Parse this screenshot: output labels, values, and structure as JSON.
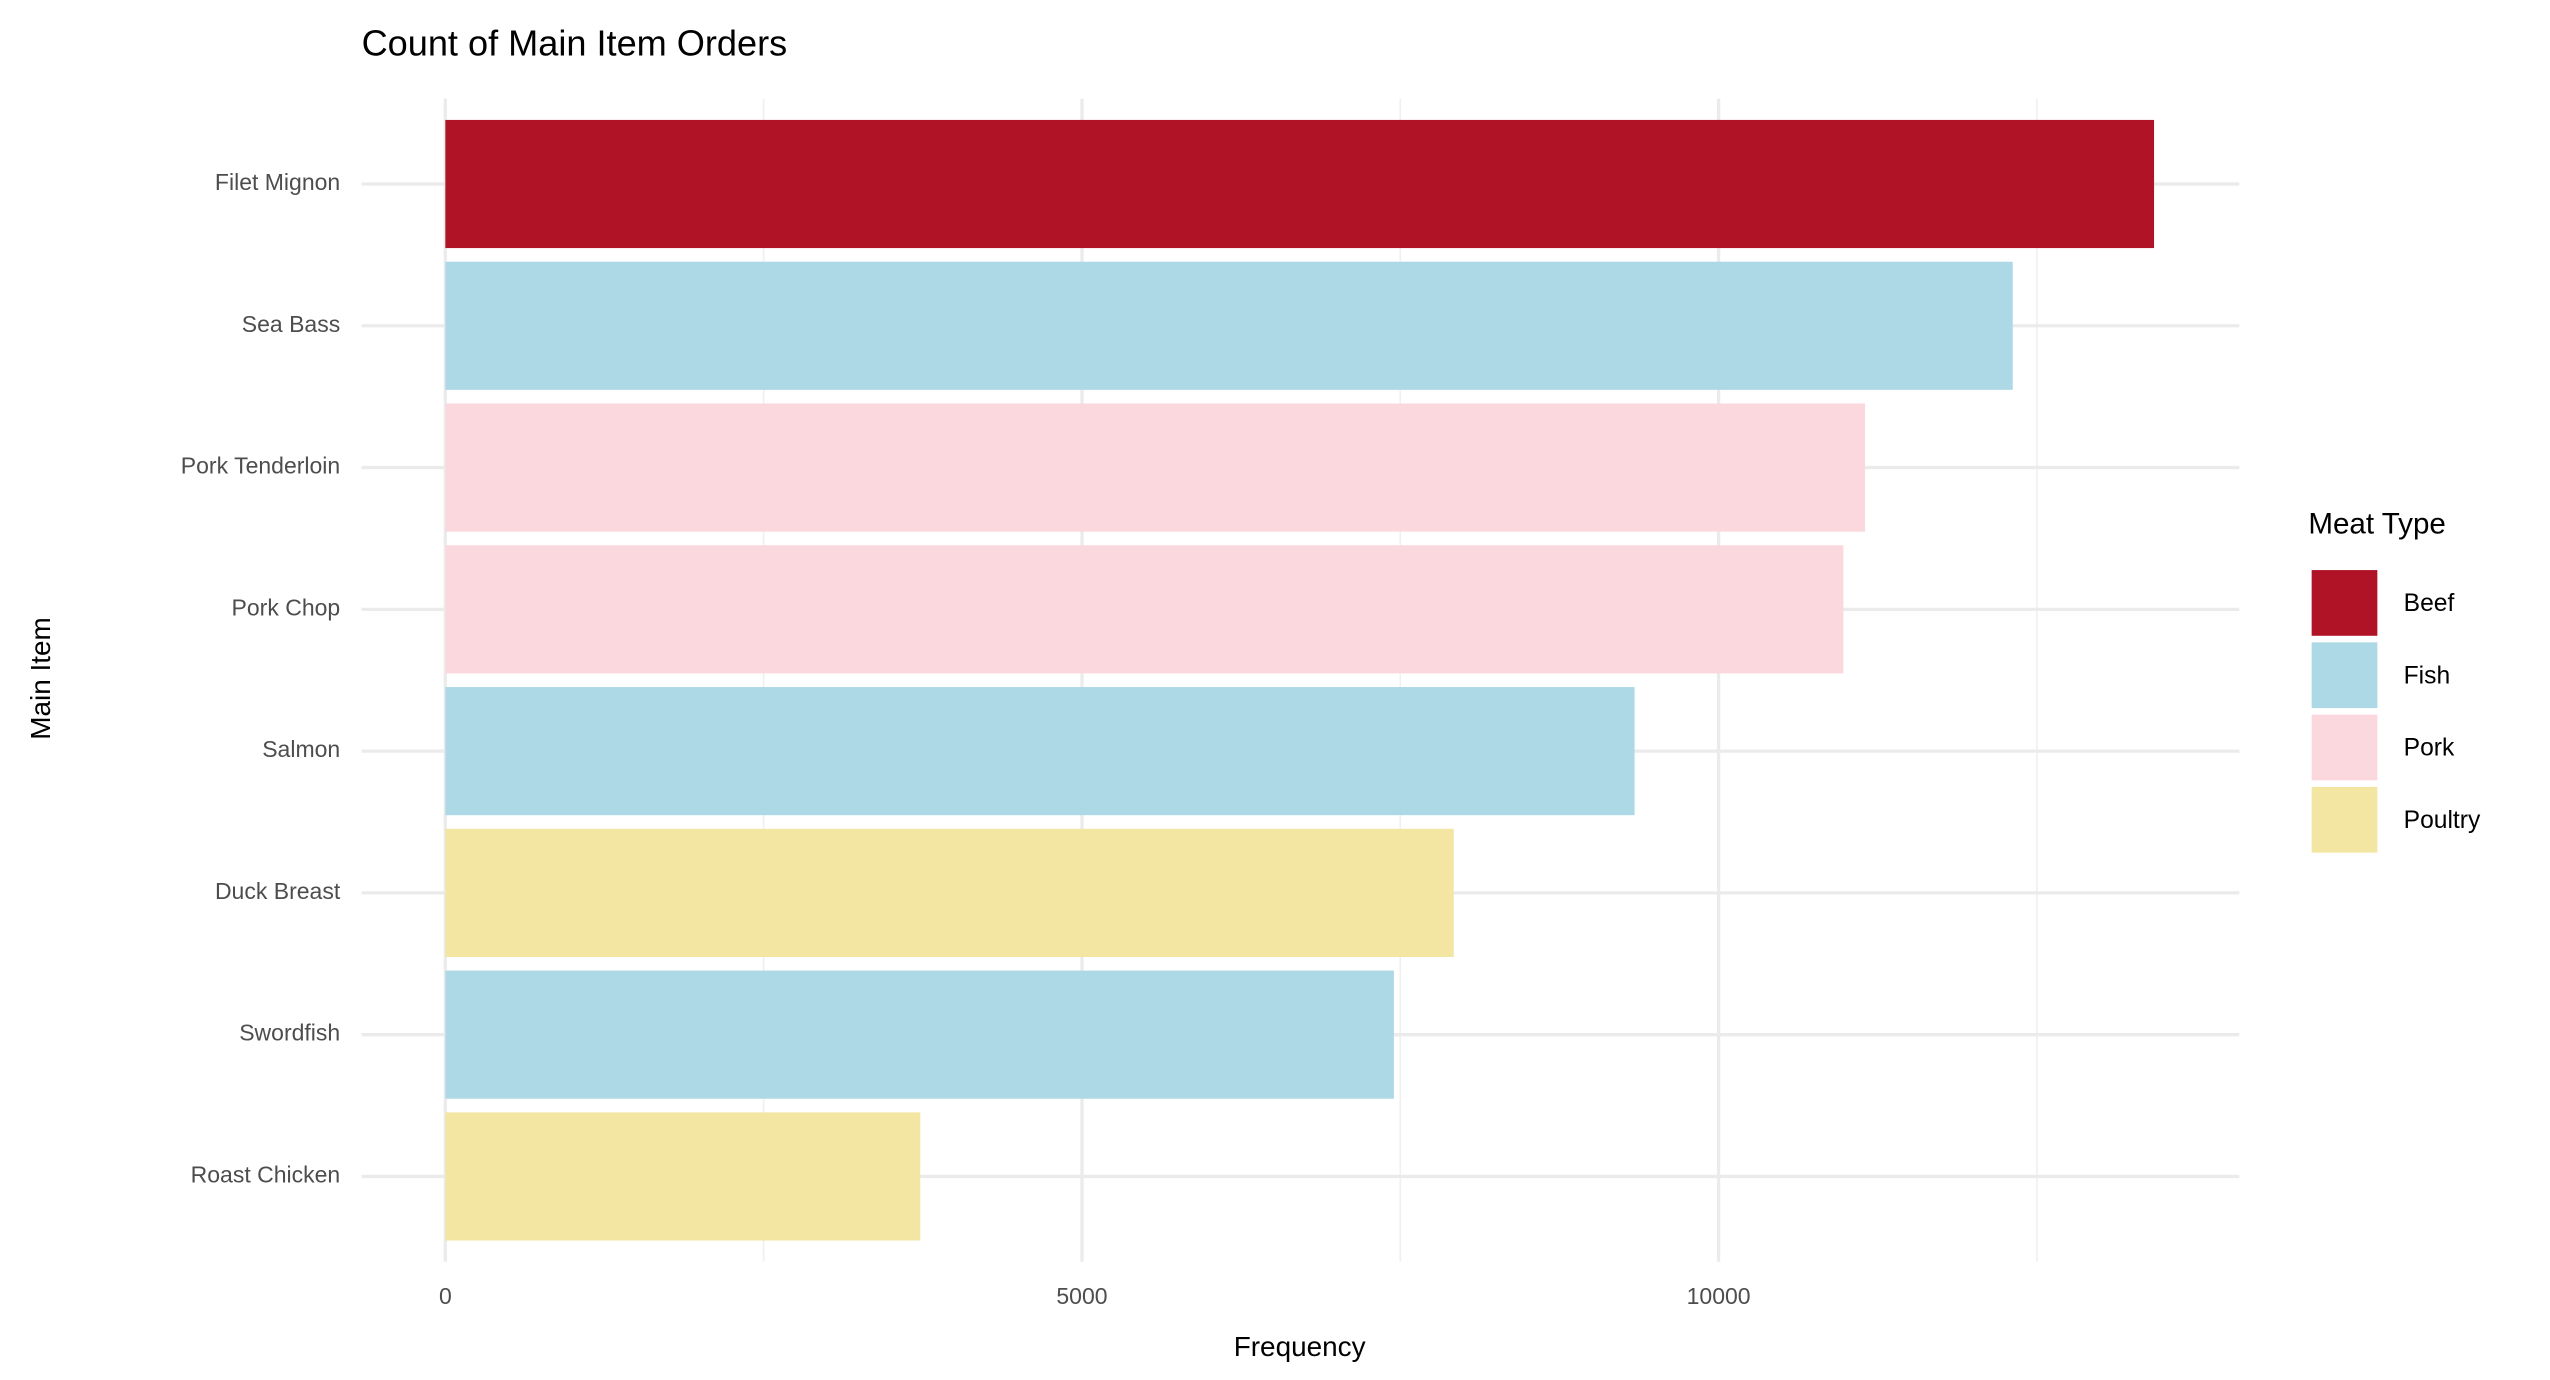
{
  "chart_data": {
    "type": "bar",
    "orientation": "horizontal",
    "title": "Count of Main Item Orders",
    "x_label": "Frequency",
    "y_label": "Main Item",
    "categories": [
      "Filet Mignon",
      "Sea Bass",
      "Pork Tenderloin",
      "Pork Chop",
      "Salmon",
      "Duck Breast",
      "Swordfish",
      "Roast Chicken"
    ],
    "values": [
      13420,
      12310,
      11150,
      10980,
      9340,
      7920,
      7450,
      3730
    ],
    "meat_type": [
      "Beef",
      "Fish",
      "Pork",
      "Pork",
      "Fish",
      "Poultry",
      "Fish",
      "Poultry"
    ],
    "xlim": [
      -658,
      14090
    ],
    "xticks": [
      0,
      5000,
      10000
    ],
    "x_minor_ticks": [
      2500,
      7500,
      12500
    ],
    "grid": true,
    "legend": {
      "position": "right",
      "title": "Meat Type",
      "entries": [
        {
          "name": "Beef",
          "color": "#b01226"
        },
        {
          "name": "Fish",
          "color": "#add8e6"
        },
        {
          "name": "Pork",
          "color": "#fbd7de"
        },
        {
          "name": "Poultry",
          "color": "#f3e6a2"
        }
      ]
    }
  }
}
